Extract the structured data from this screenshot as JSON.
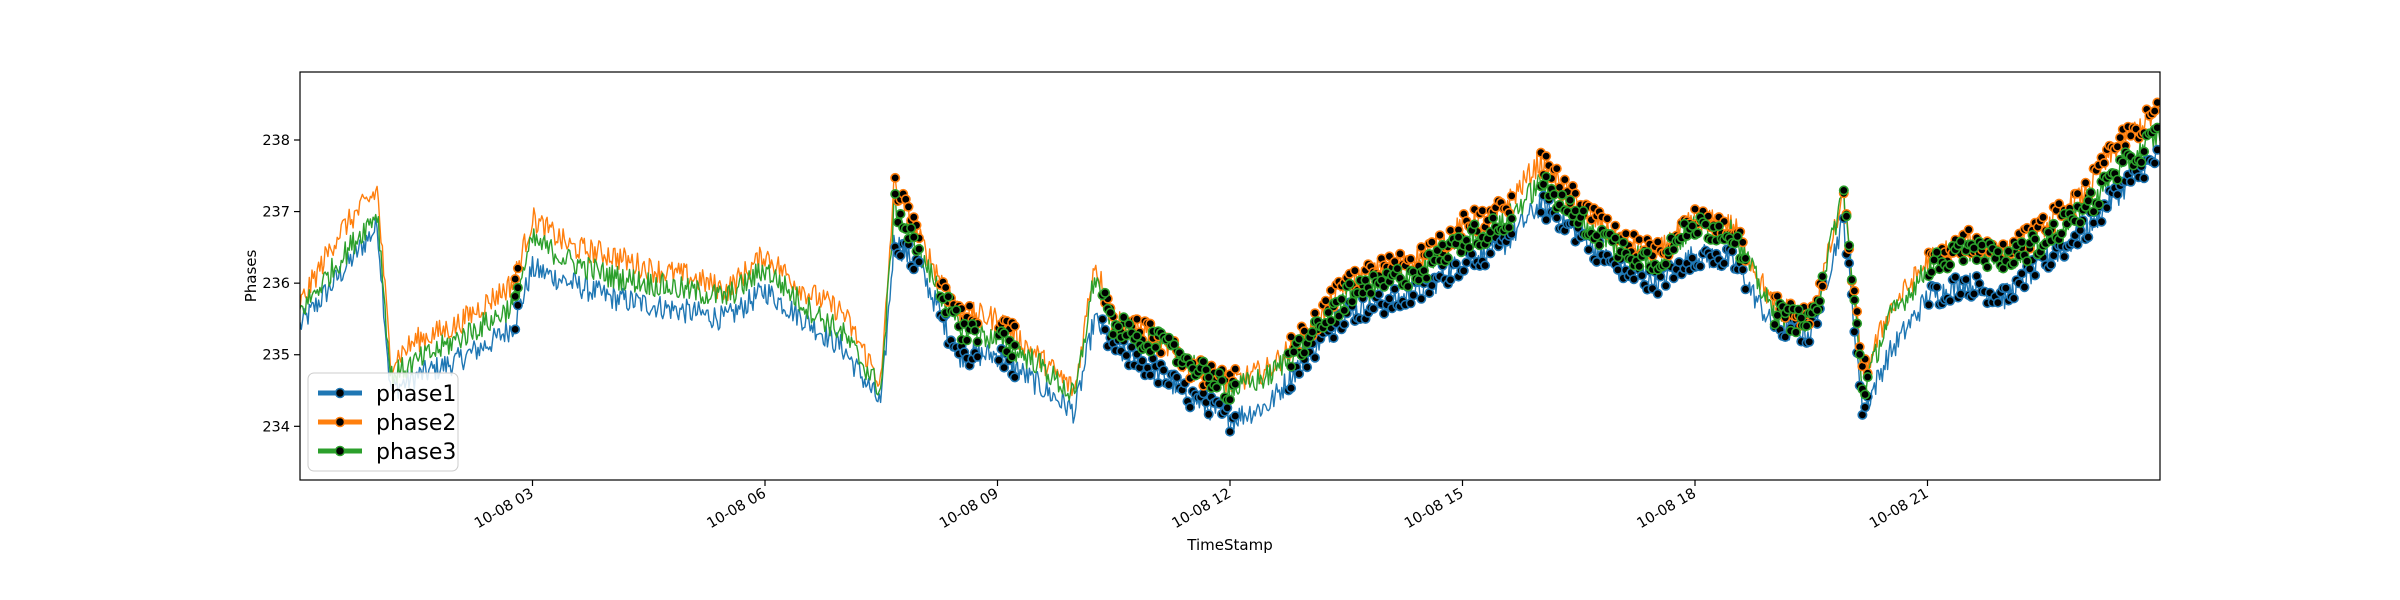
{
  "chart_data": {
    "type": "line",
    "title": "",
    "xlabel": "TimeStamp",
    "ylabel": "Phases",
    "xlim": [
      "2023-10-08 00:00",
      "2023-10-09 00:00"
    ],
    "ylim": [
      233.25,
      238.95
    ],
    "x_ticks": [
      {
        "value": "2023-10-08 03:00",
        "label": "10-08 03"
      },
      {
        "value": "2023-10-08 06:00",
        "label": "10-08 06"
      },
      {
        "value": "2023-10-08 09:00",
        "label": "10-08 09"
      },
      {
        "value": "2023-10-08 12:00",
        "label": "10-08 12"
      },
      {
        "value": "2023-10-08 15:00",
        "label": "10-08 15"
      },
      {
        "value": "2023-10-08 18:00",
        "label": "10-08 18"
      },
      {
        "value": "2023-10-08 21:00",
        "label": "10-08 21"
      }
    ],
    "y_ticks": [
      234,
      235,
      236,
      237,
      238
    ],
    "grid": false,
    "legend_position": "lower-left",
    "marker_color": "#000000",
    "x": [
      "2023-10-08 00:00",
      "2023-10-08 00:30",
      "2023-10-08 01:00",
      "2023-10-08 01:10",
      "2023-10-08 01:30",
      "2023-10-08 02:00",
      "2023-10-08 02:30",
      "2023-10-08 02:45",
      "2023-10-08 03:00",
      "2023-10-08 03:30",
      "2023-10-08 04:00",
      "2023-10-08 04:30",
      "2023-10-08 05:00",
      "2023-10-08 05:30",
      "2023-10-08 06:00",
      "2023-10-08 06:30",
      "2023-10-08 07:00",
      "2023-10-08 07:30",
      "2023-10-08 07:40",
      "2023-10-08 08:00",
      "2023-10-08 08:30",
      "2023-10-08 09:00",
      "2023-10-08 09:30",
      "2023-10-08 10:00",
      "2023-10-08 10:15",
      "2023-10-08 10:30",
      "2023-10-08 11:00",
      "2023-10-08 11:30",
      "2023-10-08 12:00",
      "2023-10-08 12:30",
      "2023-10-08 13:00",
      "2023-10-08 13:30",
      "2023-10-08 14:00",
      "2023-10-08 14:30",
      "2023-10-08 15:00",
      "2023-10-08 15:30",
      "2023-10-08 16:00",
      "2023-10-08 16:30",
      "2023-10-08 17:00",
      "2023-10-08 17:30",
      "2023-10-08 18:00",
      "2023-10-08 18:30",
      "2023-10-08 19:00",
      "2023-10-08 19:30",
      "2023-10-08 19:55",
      "2023-10-08 20:10",
      "2023-10-08 20:30",
      "2023-10-08 21:00",
      "2023-10-08 21:30",
      "2023-10-08 22:00",
      "2023-10-08 22:30",
      "2023-10-08 23:00",
      "2023-10-08 23:30",
      "2023-10-09 00:00"
    ],
    "series": [
      {
        "name": "phase1",
        "color": "#1f77b4",
        "values": [
          235.4,
          236.1,
          236.8,
          234.5,
          234.7,
          234.9,
          235.2,
          235.4,
          236.2,
          236.0,
          235.8,
          235.7,
          235.6,
          235.5,
          235.9,
          235.5,
          235.1,
          234.3,
          236.6,
          236.2,
          235.0,
          235.0,
          234.6,
          234.2,
          235.5,
          235.1,
          234.8,
          234.4,
          234.1,
          234.3,
          235.0,
          235.6,
          235.7,
          235.9,
          236.3,
          236.5,
          237.1,
          236.7,
          236.2,
          236.0,
          236.4,
          236.3,
          235.4,
          235.3,
          236.9,
          234.2,
          235.0,
          235.8,
          236.0,
          235.8,
          236.3,
          236.7,
          237.3,
          237.8
        ]
      },
      {
        "name": "phase2",
        "color": "#ff7f0e",
        "values": [
          235.7,
          236.7,
          237.3,
          234.9,
          235.2,
          235.4,
          235.8,
          236.0,
          236.9,
          236.5,
          236.4,
          236.2,
          236.1,
          235.9,
          236.4,
          235.9,
          235.6,
          234.6,
          237.4,
          236.6,
          235.6,
          235.5,
          235.0,
          234.5,
          236.3,
          235.5,
          235.3,
          234.8,
          234.6,
          234.8,
          235.3,
          236.0,
          236.2,
          236.4,
          236.8,
          237.0,
          237.7,
          237.1,
          236.6,
          236.4,
          236.9,
          236.8,
          235.7,
          235.5,
          237.2,
          234.7,
          235.6,
          236.3,
          236.6,
          236.4,
          236.8,
          237.2,
          238.0,
          238.4
        ]
      },
      {
        "name": "phase3",
        "color": "#2ca02c",
        "values": [
          235.6,
          236.3,
          237.0,
          234.7,
          234.9,
          235.2,
          235.5,
          235.7,
          236.6,
          236.3,
          236.1,
          236.0,
          235.9,
          235.8,
          236.2,
          235.7,
          235.3,
          234.5,
          237.1,
          236.4,
          235.4,
          235.2,
          234.9,
          234.4,
          236.1,
          235.4,
          235.2,
          234.9,
          234.5,
          234.7,
          235.2,
          235.8,
          236.0,
          236.2,
          236.6,
          236.8,
          237.4,
          236.9,
          236.5,
          236.3,
          236.8,
          236.7,
          235.6,
          235.4,
          237.3,
          234.5,
          235.5,
          236.2,
          236.5,
          236.3,
          236.6,
          237.0,
          237.6,
          238.1
        ]
      }
    ],
    "marker_ranges": [
      [
        "2023-10-08 02:45",
        "2023-10-08 02:50"
      ],
      [
        "2023-10-08 07:40",
        "2023-10-08 08:00"
      ],
      [
        "2023-10-08 08:15",
        "2023-10-08 08:45"
      ],
      [
        "2023-10-08 09:00",
        "2023-10-08 09:15"
      ],
      [
        "2023-10-08 10:20",
        "2023-10-08 12:05"
      ],
      [
        "2023-10-08 12:45",
        "2023-10-08 15:40"
      ],
      [
        "2023-10-08 16:00",
        "2023-10-08 18:40"
      ],
      [
        "2023-10-08 19:00",
        "2023-10-08 19:40"
      ],
      [
        "2023-10-08 19:55",
        "2023-10-08 20:15"
      ],
      [
        "2023-10-08 21:00",
        "2023-10-08 23:59"
      ]
    ]
  }
}
